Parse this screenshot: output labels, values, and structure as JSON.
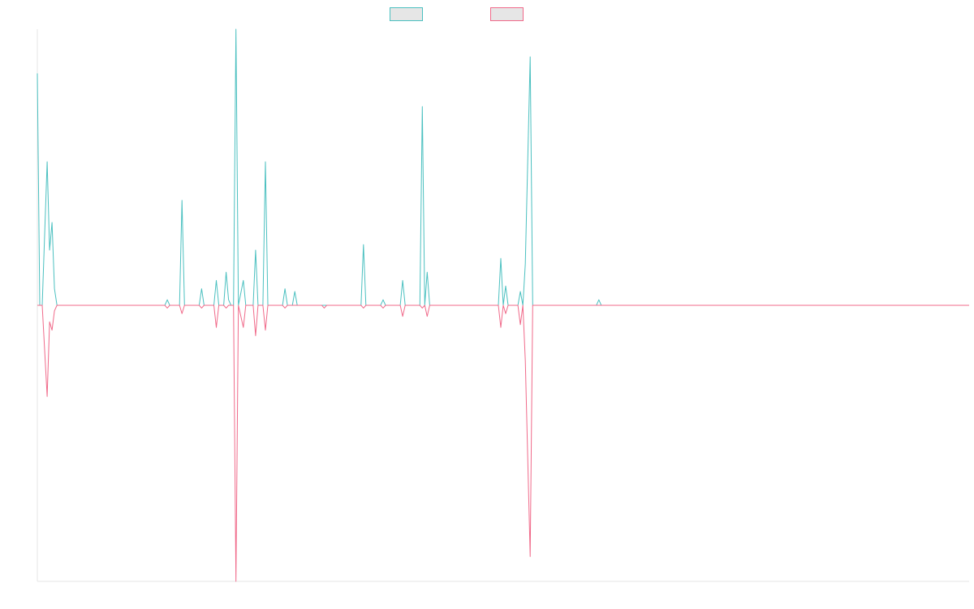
{
  "chart_data": {
    "type": "line",
    "title": "",
    "xlabel": "",
    "ylabel": "",
    "grid": false,
    "legend": {
      "position": "top-center"
    },
    "xlim": [
      0,
      190
    ],
    "ylim": [
      -100,
      100
    ],
    "series": [
      {
        "color": "#4bc0c0",
        "points": [
          [
            0,
            84
          ],
          [
            0.5,
            0
          ],
          [
            1,
            0
          ],
          [
            2,
            52
          ],
          [
            2.5,
            20
          ],
          [
            3,
            30
          ],
          [
            3.5,
            6
          ],
          [
            4,
            0
          ],
          [
            22,
            0
          ],
          [
            26,
            0
          ],
          [
            26.5,
            2
          ],
          [
            27,
            0
          ],
          [
            29,
            0
          ],
          [
            29.5,
            38
          ],
          [
            30,
            0
          ],
          [
            33,
            0
          ],
          [
            33.5,
            6
          ],
          [
            34,
            0
          ],
          [
            36,
            0
          ],
          [
            36.5,
            9
          ],
          [
            37,
            0
          ],
          [
            38,
            0
          ],
          [
            38.5,
            12
          ],
          [
            39,
            2
          ],
          [
            39.5,
            0
          ],
          [
            40,
            0
          ],
          [
            40.5,
            100
          ],
          [
            41,
            0
          ],
          [
            42,
            9
          ],
          [
            42.5,
            0
          ],
          [
            44,
            0
          ],
          [
            44.5,
            20
          ],
          [
            45,
            0
          ],
          [
            46,
            0
          ],
          [
            46.5,
            52
          ],
          [
            47,
            0
          ],
          [
            50,
            0
          ],
          [
            50.5,
            6
          ],
          [
            51,
            0
          ],
          [
            52,
            0
          ],
          [
            52.5,
            5
          ],
          [
            53,
            0
          ],
          [
            66,
            0
          ],
          [
            66.5,
            22
          ],
          [
            67,
            0
          ],
          [
            70,
            0
          ],
          [
            70.5,
            2
          ],
          [
            71,
            0
          ],
          [
            74,
            0
          ],
          [
            74.5,
            9
          ],
          [
            75,
            0
          ],
          [
            78,
            0
          ],
          [
            78.5,
            72
          ],
          [
            79,
            0
          ],
          [
            79.5,
            12
          ],
          [
            80,
            0
          ],
          [
            94,
            0
          ],
          [
            94.5,
            17
          ],
          [
            95,
            0
          ],
          [
            95.5,
            7
          ],
          [
            96,
            0
          ],
          [
            98,
            0
          ],
          [
            98.5,
            5
          ],
          [
            99,
            0
          ],
          [
            99.5,
            15
          ],
          [
            100.5,
            90
          ],
          [
            101,
            0
          ],
          [
            114,
            0
          ],
          [
            114.5,
            2
          ],
          [
            115,
            0
          ],
          [
            190,
            0
          ]
        ]
      },
      {
        "color": "#f06a8a",
        "points": [
          [
            0,
            0
          ],
          [
            1,
            0
          ],
          [
            2,
            -33
          ],
          [
            2.5,
            -6
          ],
          [
            3,
            -9
          ],
          [
            3.5,
            -2
          ],
          [
            4,
            0
          ],
          [
            22,
            0
          ],
          [
            26,
            0
          ],
          [
            26.5,
            -1
          ],
          [
            27,
            0
          ],
          [
            29,
            0
          ],
          [
            29.5,
            -3
          ],
          [
            30,
            0
          ],
          [
            33,
            0
          ],
          [
            33.5,
            -1
          ],
          [
            34,
            0
          ],
          [
            36,
            0
          ],
          [
            36.5,
            -8
          ],
          [
            37,
            0
          ],
          [
            38,
            0
          ],
          [
            38.5,
            -1
          ],
          [
            39,
            0
          ],
          [
            40,
            0
          ],
          [
            40.5,
            -100
          ],
          [
            41,
            0
          ],
          [
            42,
            -8
          ],
          [
            42.5,
            0
          ],
          [
            44,
            0
          ],
          [
            44.5,
            -11
          ],
          [
            45,
            0
          ],
          [
            46,
            0
          ],
          [
            46.5,
            -9
          ],
          [
            47,
            0
          ],
          [
            50,
            0
          ],
          [
            50.5,
            -1
          ],
          [
            51,
            0
          ],
          [
            58,
            0
          ],
          [
            58.5,
            -1
          ],
          [
            59,
            0
          ],
          [
            66,
            0
          ],
          [
            66.5,
            -1
          ],
          [
            67,
            0
          ],
          [
            70,
            0
          ],
          [
            70.5,
            -1
          ],
          [
            71,
            0
          ],
          [
            74,
            0
          ],
          [
            74.5,
            -4
          ],
          [
            75,
            0
          ],
          [
            78,
            0
          ],
          [
            78.5,
            -1
          ],
          [
            79,
            0
          ],
          [
            79.5,
            -4
          ],
          [
            80,
            0
          ],
          [
            94,
            0
          ],
          [
            94.5,
            -8
          ],
          [
            95,
            0
          ],
          [
            95.5,
            -3
          ],
          [
            96,
            0
          ],
          [
            98,
            0
          ],
          [
            98.5,
            -7
          ],
          [
            99,
            0
          ],
          [
            99.5,
            -20
          ],
          [
            100.5,
            -91
          ],
          [
            101,
            0
          ],
          [
            190,
            0
          ]
        ]
      }
    ]
  }
}
